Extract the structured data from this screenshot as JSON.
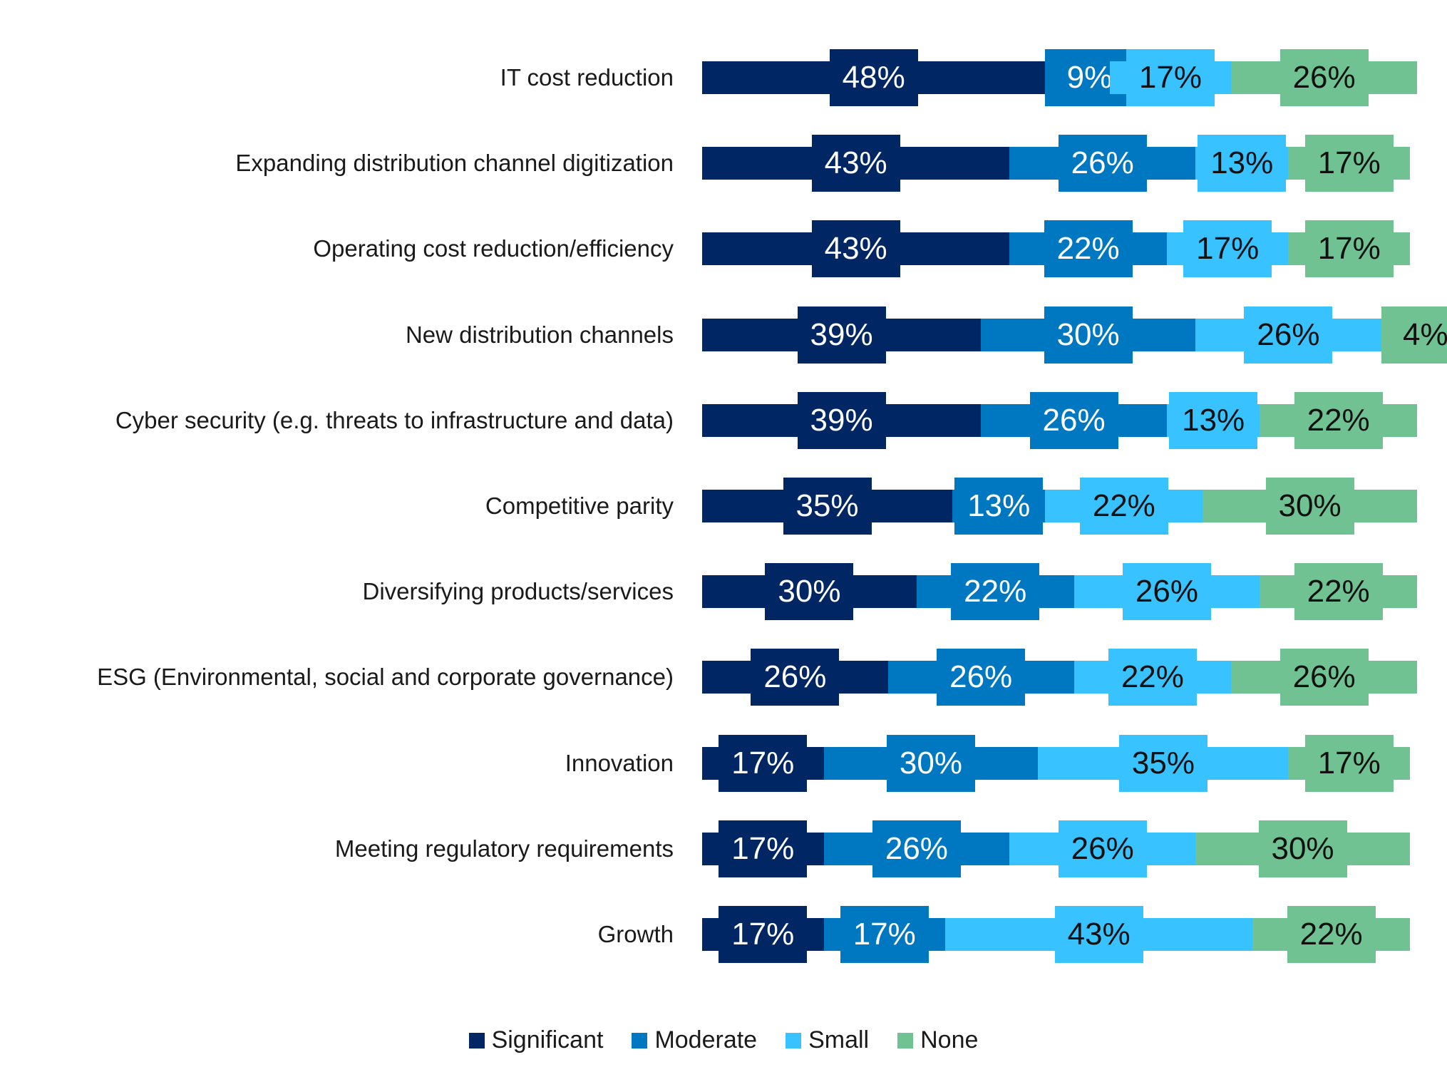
{
  "chart_data": {
    "type": "bar",
    "orientation": "horizontal",
    "stacked": true,
    "title": "",
    "xlabel": "",
    "ylabel": "",
    "xlim": [
      0,
      100
    ],
    "grid": false,
    "legend_position": "bottom",
    "categories": [
      "IT cost reduction",
      "Expanding distribution channel digitization",
      "Operating cost reduction/efficiency",
      "New distribution channels",
      "Cyber security (e.g. threats to infrastructure and data)",
      "Competitive parity",
      "Diversifying products/services",
      "ESG (Environmental, social and corporate governance)",
      "Innovation",
      "Meeting regulatory requirements",
      "Growth"
    ],
    "series": [
      {
        "name": "Significant",
        "color": "#002664",
        "text_color": "#ffffff",
        "values": [
          48,
          43,
          43,
          39,
          39,
          35,
          30,
          26,
          17,
          17,
          17
        ]
      },
      {
        "name": "Moderate",
        "color": "#0078c1",
        "text_color": "#ffffff",
        "values": [
          9,
          26,
          22,
          30,
          26,
          13,
          22,
          26,
          30,
          26,
          17
        ]
      },
      {
        "name": "Small",
        "color": "#38c2ff",
        "text_color": "#111111",
        "values": [
          17,
          13,
          17,
          26,
          13,
          22,
          26,
          22,
          35,
          26,
          43
        ]
      },
      {
        "name": "None",
        "color": "#71c293",
        "text_color": "#111111",
        "values": [
          26,
          17,
          17,
          4,
          22,
          30,
          22,
          26,
          17,
          30,
          22
        ]
      }
    ],
    "value_suffix": "%"
  }
}
